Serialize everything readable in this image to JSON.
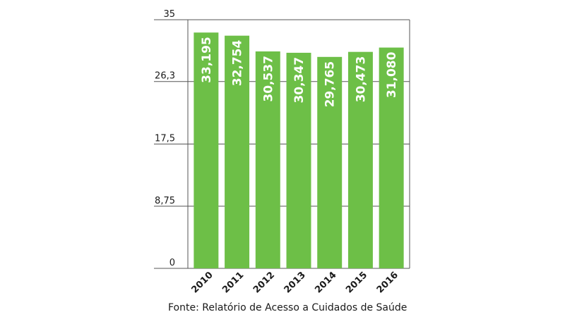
{
  "chart_data": {
    "type": "bar",
    "categories": [
      "2010",
      "2011",
      "2012",
      "2013",
      "2014",
      "2015",
      "2016"
    ],
    "values": [
      33.195,
      32.754,
      30.537,
      30.347,
      29.765,
      30.473,
      31.08
    ],
    "data_labels": [
      "33,195",
      "32,754",
      "30,537",
      "30,347",
      "29,765",
      "30,473",
      "31,080"
    ],
    "yticks": [
      0,
      8.75,
      17.5,
      26.3,
      35
    ],
    "ytick_labels": [
      "0",
      "8,75",
      "17,5",
      "26,3",
      "35"
    ],
    "ylim": [
      0,
      35
    ],
    "title": "",
    "xlabel": "",
    "ylabel": "",
    "grid": true,
    "bar_color": "#6dbf47",
    "grid_color": "#555555",
    "source": "Fonte: Relatório de Acesso a Cuidados de Saúde"
  }
}
